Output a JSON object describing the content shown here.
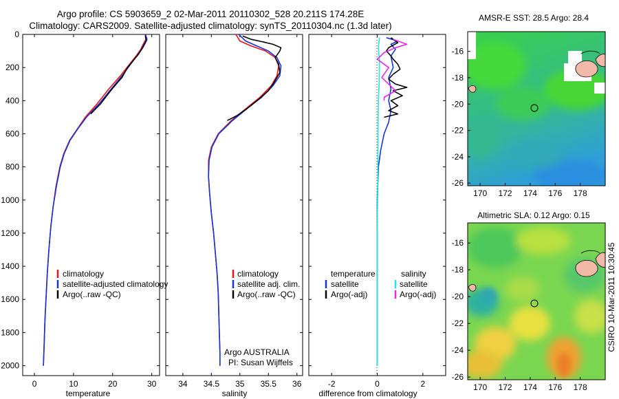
{
  "header": {
    "line1": "Argo profile: CS 5903659_2 02-Mar-2011 20110302_528 20.211S 174.28E",
    "line2": "Climatology: CARS2009. Satellite-adjusted climatology: synTS_20110304.nc (1.3d later)"
  },
  "side_label": "CSIRO 10-Mar-2011 10:30:45",
  "chart_data": [
    {
      "type": "line",
      "name": "temperature",
      "xlabel": "temperature",
      "xlim": [
        -3,
        32
      ],
      "ylim": [
        0,
        2060
      ],
      "xticks": [
        0,
        10,
        20,
        30
      ],
      "yticks": [
        0,
        200,
        400,
        600,
        800,
        1000,
        1200,
        1400,
        1600,
        1800,
        2000
      ],
      "y_reversed": true,
      "series": [
        {
          "name": "climatology",
          "color": "#ee1111",
          "points": [
            [
              28.3,
              0
            ],
            [
              28.5,
              30
            ],
            [
              27.8,
              60
            ],
            [
              27.2,
              90
            ],
            [
              26,
              130
            ],
            [
              24,
              190
            ],
            [
              22,
              250
            ],
            [
              19,
              330
            ],
            [
              16,
              420
            ],
            [
              13,
              500
            ],
            [
              11,
              570
            ],
            [
              9,
              640
            ],
            [
              7.5,
              720
            ],
            [
              6.5,
              800
            ],
            [
              5.5,
              920
            ],
            [
              4.8,
              1040
            ],
            [
              4.2,
              1160
            ],
            [
              3.7,
              1300
            ],
            [
              3.3,
              1440
            ],
            [
              3,
              1580
            ],
            [
              2.7,
              1720
            ],
            [
              2.5,
              1860
            ],
            [
              2.3,
              2000
            ]
          ]
        },
        {
          "name": "satellite-adjusted climatology",
          "color": "#1133dd",
          "points": [
            [
              28.4,
              0
            ],
            [
              28.8,
              30
            ],
            [
              28,
              60
            ],
            [
              27.4,
              90
            ],
            [
              26.2,
              130
            ],
            [
              24.3,
              190
            ],
            [
              22.4,
              250
            ],
            [
              19.6,
              330
            ],
            [
              16.5,
              420
            ],
            [
              13.3,
              500
            ],
            [
              11.1,
              570
            ],
            [
              9.1,
              640
            ],
            [
              7.6,
              720
            ],
            [
              6.6,
              800
            ],
            [
              5.6,
              920
            ],
            [
              4.8,
              1040
            ],
            [
              4.2,
              1160
            ],
            [
              3.7,
              1300
            ],
            [
              3.3,
              1440
            ],
            [
              3,
              1580
            ],
            [
              2.7,
              1720
            ],
            [
              2.5,
              1860
            ],
            [
              2.3,
              2000
            ]
          ]
        },
        {
          "name": "Argo(..raw -QC)",
          "color": "#000000",
          "points": [
            [
              28.4,
              10
            ],
            [
              28.6,
              40
            ],
            [
              27.7,
              80
            ],
            [
              26.6,
              120
            ],
            [
              25.2,
              160
            ],
            [
              23.8,
              200
            ],
            [
              22.4,
              260
            ],
            [
              20.2,
              320
            ],
            [
              18.5,
              370
            ],
            [
              16.9,
              420
            ],
            [
              14.4,
              480
            ]
          ]
        }
      ],
      "legend": {
        "entries": [
          "climatology",
          "satellite-adjusted climatology",
          "Argo(..raw -QC)"
        ]
      }
    },
    {
      "type": "line",
      "name": "salinity",
      "xlabel": "salinity",
      "xlim": [
        33.7,
        36.1
      ],
      "ylim": [
        0,
        2060
      ],
      "xticks": [
        34,
        34.5,
        35,
        35.5,
        36
      ],
      "y_reversed": true,
      "series": [
        {
          "name": "climatology",
          "color": "#ee1111",
          "points": [
            [
              34.93,
              0
            ],
            [
              35,
              40
            ],
            [
              35.2,
              70
            ],
            [
              35.45,
              100
            ],
            [
              35.62,
              140
            ],
            [
              35.68,
              190
            ],
            [
              35.65,
              250
            ],
            [
              35.55,
              310
            ],
            [
              35.35,
              380
            ],
            [
              35.1,
              450
            ],
            [
              34.85,
              520
            ],
            [
              34.62,
              600
            ],
            [
              34.5,
              680
            ],
            [
              34.45,
              760
            ],
            [
              34.45,
              860
            ],
            [
              34.47,
              960
            ],
            [
              34.5,
              1080
            ],
            [
              34.54,
              1200
            ],
            [
              34.57,
              1320
            ],
            [
              34.6,
              1440
            ],
            [
              34.62,
              1560
            ],
            [
              34.63,
              1680
            ],
            [
              34.64,
              1800
            ],
            [
              34.65,
              1920
            ],
            [
              34.65,
              2000
            ]
          ]
        },
        {
          "name": "satellite adj. clim.",
          "color": "#1133dd",
          "points": [
            [
              34.98,
              0
            ],
            [
              35.1,
              40
            ],
            [
              35.3,
              70
            ],
            [
              35.5,
              100
            ],
            [
              35.65,
              140
            ],
            [
              35.72,
              190
            ],
            [
              35.7,
              250
            ],
            [
              35.58,
              310
            ],
            [
              35.38,
              380
            ],
            [
              35.12,
              450
            ],
            [
              34.87,
              520
            ],
            [
              34.63,
              600
            ],
            [
              34.51,
              680
            ],
            [
              34.46,
              760
            ],
            [
              34.45,
              860
            ],
            [
              34.47,
              960
            ],
            [
              34.5,
              1080
            ],
            [
              34.54,
              1200
            ],
            [
              34.57,
              1320
            ],
            [
              34.6,
              1440
            ],
            [
              34.62,
              1560
            ],
            [
              34.63,
              1680
            ],
            [
              34.64,
              1800
            ],
            [
              34.65,
              1920
            ],
            [
              34.65,
              2000
            ]
          ]
        },
        {
          "name": "Argo(..raw -QC)",
          "color": "#000000",
          "points": [
            [
              35.05,
              10
            ],
            [
              35.2,
              30
            ],
            [
              35.4,
              45
            ],
            [
              35.58,
              60
            ],
            [
              35.72,
              80
            ],
            [
              35.7,
              100
            ],
            [
              35.62,
              140
            ],
            [
              35.68,
              180
            ],
            [
              35.7,
              230
            ],
            [
              35.6,
              290
            ],
            [
              35.5,
              340
            ],
            [
              35.3,
              400
            ],
            [
              35.12,
              450
            ],
            [
              34.95,
              490
            ],
            [
              34.78,
              520
            ]
          ]
        }
      ],
      "legend": {
        "entries": [
          "climatology",
          "satellite adj. clim.",
          "Argo(..raw -QC)"
        ]
      },
      "annotation": [
        "Argo AUSTRALIA",
        "PI: Susan Wijffels"
      ]
    },
    {
      "type": "line",
      "name": "difference",
      "xlabel": "difference from climatology",
      "xlim": [
        -3,
        3
      ],
      "ylim": [
        0,
        2060
      ],
      "xticks": [
        -2,
        0,
        2
      ],
      "y_reversed": true,
      "series": [
        {
          "name": "temperature satellite",
          "color": "#1133dd",
          "points": [
            [
              0.4,
              20
            ],
            [
              0.9,
              40
            ],
            [
              0.6,
              60
            ],
            [
              0.8,
              90
            ],
            [
              0.6,
              130
            ],
            [
              0.7,
              200
            ],
            [
              0.5,
              260
            ],
            [
              0.6,
              330
            ],
            [
              0.5,
              400
            ],
            [
              0.6,
              460
            ],
            [
              0.5,
              530
            ],
            [
              0.3,
              600
            ],
            [
              0.15,
              700
            ],
            [
              0.05,
              800
            ],
            [
              0,
              1000
            ],
            [
              0,
              2000
            ]
          ]
        },
        {
          "name": "temperature Argo(-adj)",
          "color": "#000000",
          "points": [
            [
              0.6,
              20
            ],
            [
              0.9,
              50
            ],
            [
              0.5,
              80
            ],
            [
              0.4,
              100
            ],
            [
              0.6,
              130
            ],
            [
              0.7,
              150
            ],
            [
              0.9,
              180
            ],
            [
              1,
              210
            ],
            [
              0.7,
              240
            ],
            [
              0.5,
              270
            ],
            [
              0.8,
              300
            ],
            [
              1.3,
              320
            ],
            [
              0.7,
              340
            ],
            [
              1.1,
              370
            ],
            [
              0.6,
              400
            ],
            [
              0.9,
              430
            ],
            [
              0.5,
              460
            ],
            [
              0.9,
              480
            ],
            [
              0.3,
              500
            ]
          ]
        },
        {
          "name": "salinity satellite",
          "color": "#22e6e6",
          "points": [
            [
              0.1,
              20
            ],
            [
              0.05,
              80
            ],
            [
              0.1,
              160
            ],
            [
              0.08,
              300
            ],
            [
              0.05,
              400
            ],
            [
              0.04,
              500
            ],
            [
              0.03,
              700
            ],
            [
              0.02,
              900
            ],
            [
              0,
              1200
            ],
            [
              0,
              2000
            ]
          ]
        },
        {
          "name": "salinity Argo(-adj)",
          "color": "#ee22ee",
          "points": [
            [
              0.7,
              30
            ],
            [
              1.3,
              60
            ],
            [
              0.8,
              80
            ],
            [
              0.3,
              110
            ],
            [
              0,
              150
            ],
            [
              0.5,
              200
            ],
            [
              0.2,
              260
            ],
            [
              0.5,
              300
            ],
            [
              0.8,
              340
            ],
            [
              0.3,
              380
            ],
            [
              0.3,
              400
            ]
          ]
        }
      ],
      "legend": {
        "temperature_title": "temperature",
        "salinity_title": "salinity",
        "temperature_entries": [
          "satellite",
          "Argo(-adj)"
        ],
        "salinity_entries": [
          "satellite",
          "Argo(-adj)"
        ]
      }
    },
    {
      "type": "heatmap",
      "name": "sst-map",
      "title": "AMSR-E SST: 28.5  Argo: 28.4",
      "xlim": [
        169,
        180
      ],
      "ylim": [
        -26.2,
        -14.5
      ],
      "xticks": [
        170,
        172,
        174,
        176,
        178
      ],
      "yticks": [
        -16,
        -18,
        -20,
        -22,
        -24,
        -26
      ],
      "float_position": [
        174.28,
        -20.211
      ]
    },
    {
      "type": "heatmap",
      "name": "sla-map",
      "title": "Altimetric SLA: 0.12  Argo: 0.15",
      "xlim": [
        169,
        180
      ],
      "ylim": [
        -26.2,
        -14.5
      ],
      "xticks": [
        170,
        172,
        174,
        176,
        178
      ],
      "yticks": [
        -16,
        -18,
        -20,
        -22,
        -24,
        -26
      ],
      "float_position": [
        174.28,
        -20.211
      ]
    }
  ]
}
